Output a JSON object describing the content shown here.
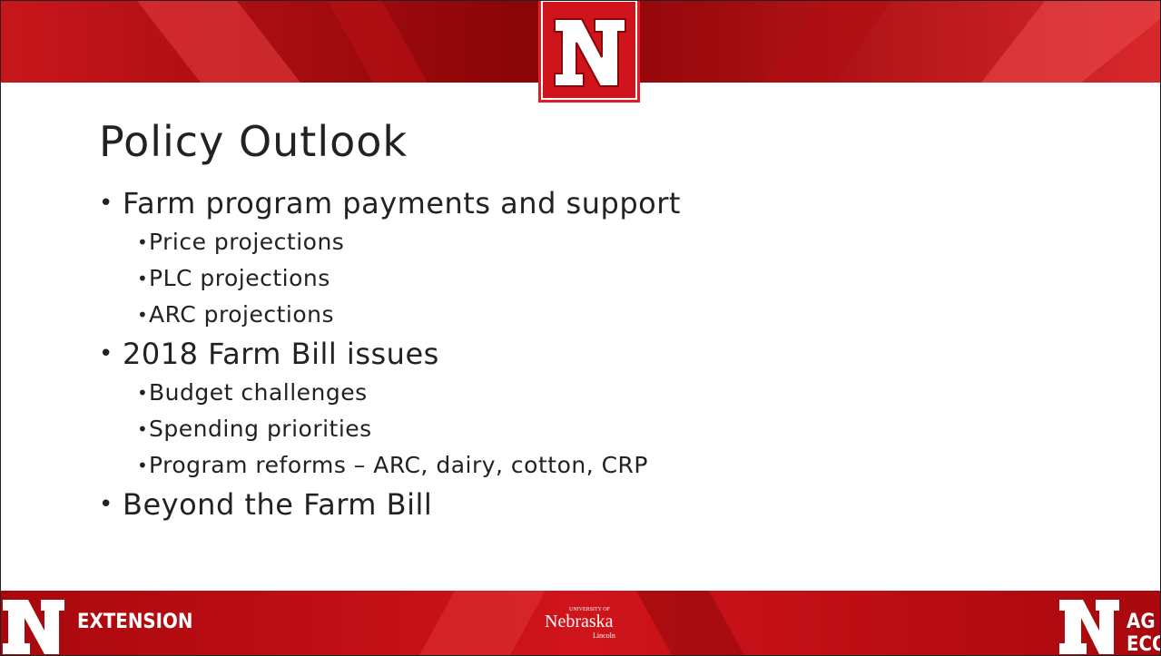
{
  "slide": {
    "title": "Policy Outlook",
    "bullets": [
      {
        "text": "Farm program payments and support",
        "items": [
          "Price projections",
          "PLC projections",
          "ARC projections"
        ]
      },
      {
        "text": "2018 Farm Bill issues",
        "items": [
          "Budget challenges",
          "Spending priorities",
          "Program reforms – ARC, dairy, cotton, CRP"
        ]
      },
      {
        "text": "Beyond the Farm Bill",
        "items": []
      }
    ],
    "footer": {
      "left": "EXTENSION",
      "center_small": "UNIVERSITY OF",
      "center": "Nebraska",
      "center_sub": "Lincoln",
      "right": "AG ECON"
    }
  }
}
